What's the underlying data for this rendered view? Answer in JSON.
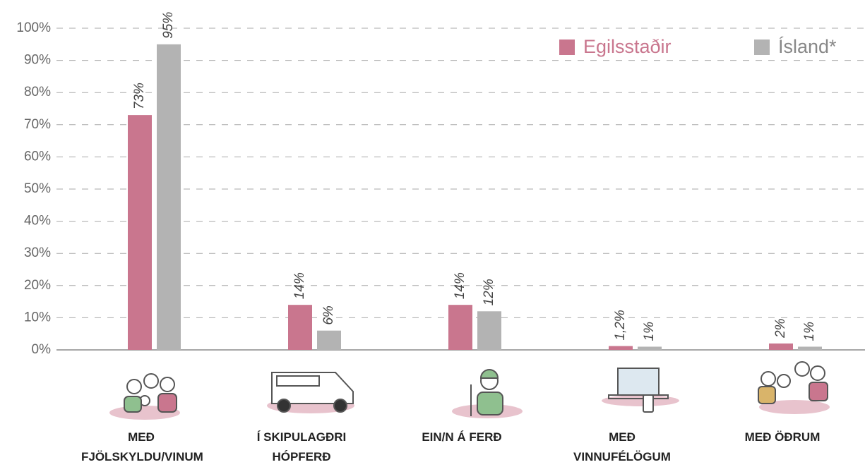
{
  "chart_data": {
    "type": "bar",
    "categories": [
      "MEÐ FJÖLSKYLDU/VINUM",
      "Í SKIPULAGÐRI HÓPFERÐ",
      "EIN/N Á FERÐ",
      "MEÐ VINNUFÉLÖGUM",
      "MEÐ ÖÐRUM"
    ],
    "series": [
      {
        "name": "Egilsstaðir",
        "color": "#c9768e",
        "values": [
          73,
          14,
          14,
          1.2,
          2
        ],
        "value_labels": [
          "73%",
          "14%",
          "14%",
          "1,2%",
          "2%"
        ]
      },
      {
        "name": "Ísland*",
        "color": "#b3b3b3",
        "values": [
          95,
          6,
          12,
          1,
          1
        ],
        "value_labels": [
          "95%",
          "6%",
          "12%",
          "1%",
          "1%"
        ]
      }
    ],
    "ylim": [
      0,
      100
    ],
    "yticks": [
      {
        "value": 0,
        "label": "0%"
      },
      {
        "value": 10,
        "label": "10%"
      },
      {
        "value": 20,
        "label": "20%"
      },
      {
        "value": 30,
        "label": "30%"
      },
      {
        "value": 40,
        "label": "40%"
      },
      {
        "value": 50,
        "label": "50%"
      },
      {
        "value": 60,
        "label": "60%"
      },
      {
        "value": 70,
        "label": "70%"
      },
      {
        "value": 80,
        "label": "80%"
      },
      {
        "value": 90,
        "label": "90%"
      },
      {
        "value": 100,
        "label": "100%"
      }
    ],
    "grid": true,
    "legend": "top-right"
  }
}
